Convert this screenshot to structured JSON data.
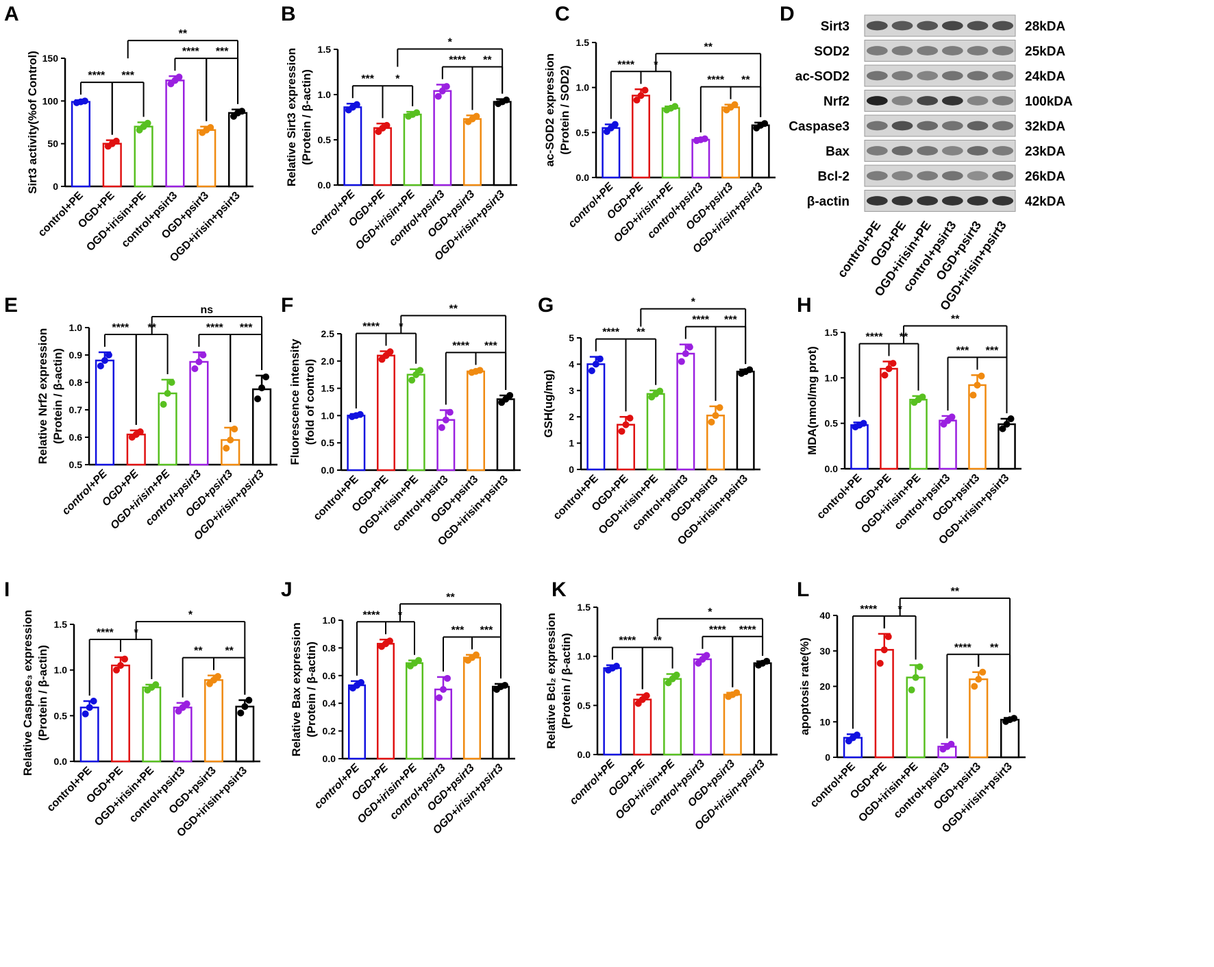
{
  "colors": {
    "group_colors": [
      "#1010e0",
      "#e01010",
      "#58c020",
      "#9a20e0",
      "#f08a10",
      "#000000"
    ],
    "axis": "#000000"
  },
  "blot": {
    "letter": "D",
    "bands": [
      {
        "protein": "Sirt3",
        "size": "28kDA"
      },
      {
        "protein": "SOD2",
        "size": "25kDA"
      },
      {
        "protein": "ac-SOD2",
        "size": "24kDA"
      },
      {
        "protein": "Nrf2",
        "size": "100kDA"
      },
      {
        "protein": "Caspase3",
        "size": "32kDA"
      },
      {
        "protein": "Bax",
        "size": "23kDA"
      },
      {
        "protein": "Bcl-2",
        "size": "26kDA"
      },
      {
        "protein": "β-actin",
        "size": "42kDA"
      }
    ],
    "lanes": [
      "control+PE",
      "OGD+PE",
      "OGD+irisin+PE",
      "control+psirt3",
      "OGD+psirt3",
      "OGD+irisin+psirt3"
    ]
  },
  "chart_data": [
    {
      "letter": "A",
      "type": "bar",
      "ylabel": "Sirt3 activity(%of Control)",
      "ylabel2": "",
      "italic_x": false,
      "categories": [
        "control+PE",
        "OGD+PE",
        "OGD+irisin+PE",
        "control+psirt3",
        "OGD+psirt3",
        "OGD+irisin+psirt3"
      ],
      "values": [
        99,
        50,
        70,
        124,
        66,
        86
      ],
      "errors": [
        2,
        4,
        5,
        5,
        4,
        4
      ],
      "points": [
        [
          98,
          99,
          100
        ],
        [
          47,
          50,
          53
        ],
        [
          66,
          70,
          74
        ],
        [
          120,
          124,
          128
        ],
        [
          63,
          66,
          69
        ],
        [
          82,
          86,
          88
        ]
      ],
      "ylim": [
        0,
        150
      ],
      "yticks": [
        0,
        50,
        100,
        150
      ],
      "sig": [
        {
          "from": 0,
          "to": 1,
          "label": "****"
        },
        {
          "from": 1,
          "to": 2,
          "label": "***"
        },
        {
          "from": 3,
          "to": 4,
          "label": "****"
        },
        {
          "from": 4,
          "to": 5,
          "label": "***"
        },
        {
          "from": 2,
          "to": 5,
          "label": "**"
        }
      ]
    },
    {
      "letter": "B",
      "type": "bar",
      "ylabel": "Relative Sirt3 expression",
      "ylabel2": "(Protein / β-actin)",
      "italic_x": true,
      "categories": [
        "control+PE",
        "OGD+PE",
        "OGD+irisin+PE",
        "control+psirt3",
        "OGD+psirt3",
        "OGD+irisin+psirt3"
      ],
      "values": [
        0.86,
        0.63,
        0.78,
        1.04,
        0.73,
        0.92
      ],
      "errors": [
        0.04,
        0.05,
        0.03,
        0.07,
        0.04,
        0.03
      ],
      "points": [
        [
          0.83,
          0.86,
          0.89
        ],
        [
          0.59,
          0.63,
          0.66
        ],
        [
          0.76,
          0.78,
          0.8
        ],
        [
          0.98,
          1.04,
          1.09
        ],
        [
          0.7,
          0.73,
          0.76
        ],
        [
          0.9,
          0.92,
          0.94
        ]
      ],
      "ylim": [
        0,
        1.5
      ],
      "yticks": [
        0.0,
        0.5,
        1.0,
        1.5
      ],
      "sig": [
        {
          "from": 0,
          "to": 1,
          "label": "***"
        },
        {
          "from": 1,
          "to": 2,
          "label": "*"
        },
        {
          "from": 3,
          "to": 4,
          "label": "****"
        },
        {
          "from": 4,
          "to": 5,
          "label": "**"
        },
        {
          "from": 2,
          "to": 5,
          "label": "*"
        }
      ]
    },
    {
      "letter": "C",
      "type": "bar",
      "ylabel": "ac-SOD2 expression",
      "ylabel2": "(Protein / SOD2)",
      "italic_x": true,
      "categories": [
        "control+PE",
        "OGD+PE",
        "OGD+irisin+PE",
        "control+psirt3",
        "OGD+psirt3",
        "OGD+irisin+psirt3"
      ],
      "values": [
        0.55,
        0.91,
        0.77,
        0.42,
        0.78,
        0.58
      ],
      "errors": [
        0.04,
        0.07,
        0.02,
        0.02,
        0.03,
        0.03
      ],
      "points": [
        [
          0.51,
          0.55,
          0.59
        ],
        [
          0.86,
          0.91,
          0.97
        ],
        [
          0.75,
          0.77,
          0.79
        ],
        [
          0.41,
          0.42,
          0.43
        ],
        [
          0.75,
          0.78,
          0.81
        ],
        [
          0.55,
          0.58,
          0.6
        ]
      ],
      "ylim": [
        0,
        1.5
      ],
      "yticks": [
        0.0,
        0.5,
        1.0,
        1.5
      ],
      "sig": [
        {
          "from": 0,
          "to": 1,
          "label": "****"
        },
        {
          "from": 1,
          "to": 2,
          "label": "*"
        },
        {
          "from": 3,
          "to": 4,
          "label": "****"
        },
        {
          "from": 4,
          "to": 5,
          "label": "**"
        },
        {
          "from": 2,
          "to": 5,
          "label": "**"
        }
      ]
    },
    {
      "letter": "E",
      "type": "bar",
      "ylabel": "Relative Nrf2 expression",
      "ylabel2": "(Protein / β-actin)",
      "italic_x": true,
      "categories": [
        "control+PE",
        "OGD+PE",
        "OGD+irisin+PE",
        "control+psirt3",
        "OGD+psirt3",
        "OGD+irisin+psirt3"
      ],
      "values": [
        0.88,
        0.61,
        0.76,
        0.875,
        0.59,
        0.775
      ],
      "errors": [
        0.03,
        0.015,
        0.05,
        0.035,
        0.045,
        0.05
      ],
      "points": [
        [
          0.86,
          0.88,
          0.9
        ],
        [
          0.6,
          0.61,
          0.62
        ],
        [
          0.72,
          0.76,
          0.8
        ],
        [
          0.85,
          0.875,
          0.9
        ],
        [
          0.56,
          0.59,
          0.63
        ],
        [
          0.74,
          0.78,
          0.82
        ]
      ],
      "ylim": [
        0.5,
        1.0
      ],
      "yticks": [
        0.5,
        0.6,
        0.7,
        0.8,
        0.9,
        1.0
      ],
      "sig": [
        {
          "from": 0,
          "to": 1,
          "label": "****"
        },
        {
          "from": 1,
          "to": 2,
          "label": "**"
        },
        {
          "from": 3,
          "to": 4,
          "label": "****"
        },
        {
          "from": 4,
          "to": 5,
          "label": "***"
        },
        {
          "from": 2,
          "to": 5,
          "label": "ns"
        }
      ]
    },
    {
      "letter": "F",
      "type": "bar",
      "ylabel": "Fluorescence intensity",
      "ylabel2": "(fold of control)",
      "italic_x": false,
      "categories": [
        "control+PE",
        "OGD+PE",
        "OGD+irisin+PE",
        "control+psirt3",
        "OGD+psirt3",
        "OGD+irisin+psirt3"
      ],
      "values": [
        1.0,
        2.1,
        1.75,
        0.92,
        1.81,
        1.3
      ],
      "errors": [
        0.03,
        0.08,
        0.1,
        0.18,
        0.02,
        0.07
      ],
      "points": [
        [
          0.98,
          1.0,
          1.02
        ],
        [
          2.03,
          2.1,
          2.17
        ],
        [
          1.65,
          1.75,
          1.83
        ],
        [
          0.78,
          0.92,
          1.06
        ],
        [
          1.79,
          1.81,
          1.83
        ],
        [
          1.24,
          1.3,
          1.37
        ]
      ],
      "ylim": [
        0,
        2.5
      ],
      "yticks": [
        0.0,
        0.5,
        1.0,
        1.5,
        2.0,
        2.5
      ],
      "sig": [
        {
          "from": 0,
          "to": 1,
          "label": "****"
        },
        {
          "from": 1,
          "to": 2,
          "label": "*"
        },
        {
          "from": 3,
          "to": 4,
          "label": "****"
        },
        {
          "from": 4,
          "to": 5,
          "label": "***"
        },
        {
          "from": 2,
          "to": 5,
          "label": "**"
        }
      ]
    },
    {
      "letter": "G",
      "type": "bar",
      "ylabel": "GSH(ug/mg)",
      "ylabel2": "",
      "italic_x": false,
      "categories": [
        "control+PE",
        "OGD+PE",
        "OGD+irisin+PE",
        "control+psirt3",
        "OGD+psirt3",
        "OGD+irisin+psirt3"
      ],
      "values": [
        4.0,
        1.7,
        2.87,
        4.4,
        2.05,
        3.72
      ],
      "errors": [
        0.28,
        0.3,
        0.13,
        0.35,
        0.35,
        0.08
      ],
      "points": [
        [
          3.75,
          4.0,
          4.2
        ],
        [
          1.45,
          1.7,
          1.95
        ],
        [
          2.75,
          2.87,
          2.98
        ],
        [
          4.1,
          4.4,
          4.65
        ],
        [
          1.8,
          2.05,
          2.35
        ],
        [
          3.65,
          3.72,
          3.79
        ]
      ],
      "ylim": [
        0,
        5
      ],
      "yticks": [
        0,
        1,
        2,
        3,
        4,
        5
      ],
      "sig": [
        {
          "from": 0,
          "to": 1,
          "label": "****"
        },
        {
          "from": 1,
          "to": 2,
          "label": "**"
        },
        {
          "from": 3,
          "to": 4,
          "label": "****"
        },
        {
          "from": 4,
          "to": 5,
          "label": "***"
        },
        {
          "from": 2,
          "to": 5,
          "label": "*"
        }
      ]
    },
    {
      "letter": "H",
      "type": "bar",
      "ylabel": "MDA(nmol/mg prot)",
      "ylabel2": "",
      "italic_x": false,
      "categories": [
        "control+PE",
        "OGD+PE",
        "OGD+irisin+PE",
        "control+psirt3",
        "OGD+psirt3",
        "OGD+irisin+psirt3"
      ],
      "values": [
        0.48,
        1.1,
        0.76,
        0.53,
        0.92,
        0.49
      ],
      "errors": [
        0.03,
        0.08,
        0.04,
        0.05,
        0.11,
        0.06
      ],
      "points": [
        [
          0.46,
          0.48,
          0.5
        ],
        [
          1.03,
          1.1,
          1.16
        ],
        [
          0.73,
          0.76,
          0.79
        ],
        [
          0.49,
          0.53,
          0.57
        ],
        [
          0.81,
          0.92,
          1.02
        ],
        [
          0.44,
          0.49,
          0.55
        ]
      ],
      "ylim": [
        0,
        1.5
      ],
      "yticks": [
        0.0,
        0.5,
        1.0,
        1.5
      ],
      "sig": [
        {
          "from": 0,
          "to": 1,
          "label": "****"
        },
        {
          "from": 1,
          "to": 2,
          "label": "**"
        },
        {
          "from": 3,
          "to": 4,
          "label": "***"
        },
        {
          "from": 4,
          "to": 5,
          "label": "***"
        },
        {
          "from": 2,
          "to": 5,
          "label": "**"
        }
      ]
    },
    {
      "letter": "I",
      "type": "bar",
      "ylabel": "Relative Caspase₃ expression",
      "ylabel2": "(Protein / β-actin)",
      "italic_x": false,
      "categories": [
        "control+PE",
        "OGD+PE",
        "OGD+irisin+PE",
        "control+psirt3",
        "OGD+psirt3",
        "OGD+irisin+psirt3"
      ],
      "values": [
        0.59,
        1.05,
        0.81,
        0.59,
        0.89,
        0.6
      ],
      "errors": [
        0.07,
        0.09,
        0.03,
        0.05,
        0.05,
        0.07
      ],
      "points": [
        [
          0.52,
          0.59,
          0.66
        ],
        [
          1.0,
          1.05,
          1.12
        ],
        [
          0.78,
          0.81,
          0.84
        ],
        [
          0.55,
          0.59,
          0.63
        ],
        [
          0.85,
          0.89,
          0.93
        ],
        [
          0.53,
          0.6,
          0.67
        ]
      ],
      "ylim": [
        0,
        1.5
      ],
      "yticks": [
        0.0,
        0.5,
        1.0,
        1.5
      ],
      "sig": [
        {
          "from": 0,
          "to": 1,
          "label": "****"
        },
        {
          "from": 1,
          "to": 2,
          "label": "*"
        },
        {
          "from": 3,
          "to": 4,
          "label": "**"
        },
        {
          "from": 4,
          "to": 5,
          "label": "**"
        },
        {
          "from": 2,
          "to": 5,
          "label": "*"
        }
      ]
    },
    {
      "letter": "J",
      "type": "bar",
      "ylabel": "Relative Bax expression",
      "ylabel2": "(Protein / β-actin)",
      "italic_x": true,
      "categories": [
        "control+PE",
        "OGD+PE",
        "OGD+irisin+PE",
        "control+psirt3",
        "OGD+psirt3",
        "OGD+irisin+psirt3"
      ],
      "values": [
        0.53,
        0.83,
        0.69,
        0.5,
        0.73,
        0.52
      ],
      "errors": [
        0.03,
        0.03,
        0.02,
        0.09,
        0.02,
        0.02
      ],
      "points": [
        [
          0.51,
          0.53,
          0.55
        ],
        [
          0.81,
          0.83,
          0.85
        ],
        [
          0.67,
          0.69,
          0.71
        ],
        [
          0.44,
          0.5,
          0.58
        ],
        [
          0.71,
          0.73,
          0.75
        ],
        [
          0.5,
          0.52,
          0.53
        ]
      ],
      "ylim": [
        0,
        1.0
      ],
      "yticks": [
        0.0,
        0.2,
        0.4,
        0.6,
        0.8,
        1.0
      ],
      "sig": [
        {
          "from": 0,
          "to": 1,
          "label": "****"
        },
        {
          "from": 1,
          "to": 2,
          "label": "*"
        },
        {
          "from": 3,
          "to": 4,
          "label": "***"
        },
        {
          "from": 4,
          "to": 5,
          "label": "***"
        },
        {
          "from": 2,
          "to": 5,
          "label": "**"
        }
      ]
    },
    {
      "letter": "K",
      "type": "bar",
      "ylabel": "Relative Bcl₂ expression",
      "ylabel2": "(Protein / β-actin)",
      "italic_x": true,
      "categories": [
        "control+PE",
        "OGD+PE",
        "OGD+irisin+PE",
        "control+psirt3",
        "OGD+psirt3",
        "OGD+irisin+psirt3"
      ],
      "values": [
        0.88,
        0.56,
        0.77,
        0.97,
        0.61,
        0.93
      ],
      "errors": [
        0.03,
        0.05,
        0.05,
        0.05,
        0.02,
        0.02
      ],
      "points": [
        [
          0.86,
          0.88,
          0.9
        ],
        [
          0.52,
          0.56,
          0.6
        ],
        [
          0.73,
          0.77,
          0.81
        ],
        [
          0.93,
          0.97,
          1.01
        ],
        [
          0.59,
          0.61,
          0.63
        ],
        [
          0.91,
          0.93,
          0.95
        ]
      ],
      "ylim": [
        0,
        1.5
      ],
      "yticks": [
        0.0,
        0.5,
        1.0,
        1.5
      ],
      "sig": [
        {
          "from": 0,
          "to": 1,
          "label": "****"
        },
        {
          "from": 1,
          "to": 2,
          "label": "**"
        },
        {
          "from": 3,
          "to": 4,
          "label": "****"
        },
        {
          "from": 4,
          "to": 5,
          "label": "****"
        },
        {
          "from": 2,
          "to": 5,
          "label": "*"
        }
      ]
    },
    {
      "letter": "L",
      "type": "bar",
      "ylabel": "apoptosis rate(%)",
      "ylabel2": "",
      "italic_x": false,
      "categories": [
        "control+PE",
        "OGD+PE",
        "OGD+irisin+PE",
        "control+psirt3",
        "OGD+psirt3",
        "OGD+irisin+psirt3"
      ],
      "values": [
        5.5,
        30.3,
        22.5,
        3.0,
        22.0,
        10.6
      ],
      "errors": [
        1.0,
        4.5,
        3.5,
        0.8,
        2.0,
        0.5
      ],
      "points": [
        [
          4.6,
          5.5,
          6.3
        ],
        [
          26.5,
          30.3,
          34.0
        ],
        [
          19.0,
          22.5,
          25.5
        ],
        [
          2.3,
          3.0,
          3.7
        ],
        [
          20.0,
          22.0,
          24.0
        ],
        [
          10.1,
          10.6,
          11.0
        ]
      ],
      "ylim": [
        0,
        40
      ],
      "yticks": [
        0,
        10,
        20,
        30,
        40
      ],
      "sig": [
        {
          "from": 0,
          "to": 1,
          "label": "****"
        },
        {
          "from": 1,
          "to": 2,
          "label": "*"
        },
        {
          "from": 3,
          "to": 4,
          "label": "****"
        },
        {
          "from": 4,
          "to": 5,
          "label": "**"
        },
        {
          "from": 2,
          "to": 5,
          "label": "**"
        }
      ]
    }
  ]
}
